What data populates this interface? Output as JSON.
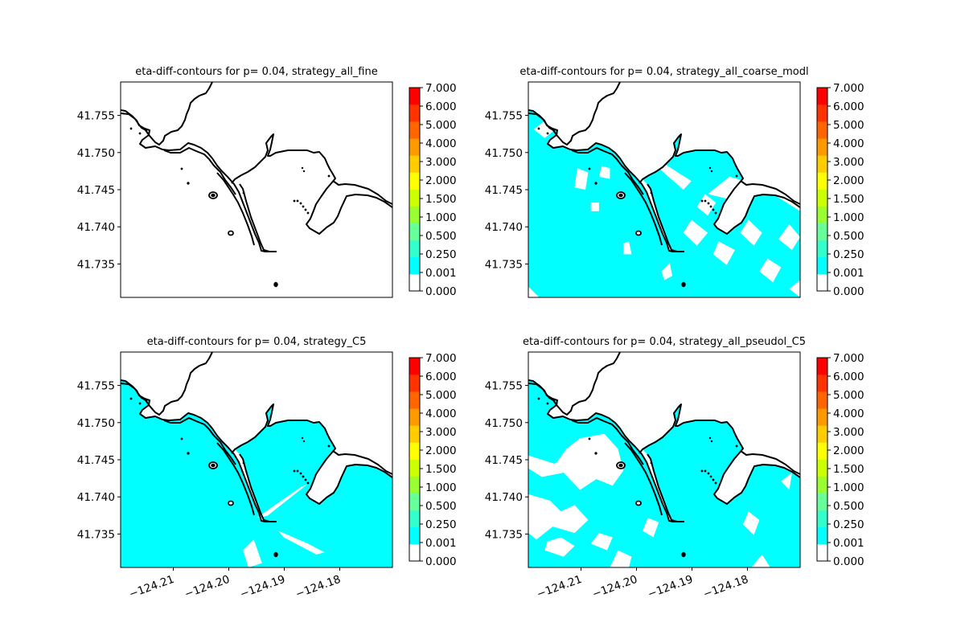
{
  "figure": {
    "background": "#ffffff"
  },
  "chart_data": [
    {
      "type": "heatmap",
      "title": "eta-diff-contours for p= 0.04, strategy_all_fine",
      "xlim": [
        -124.2195,
        -124.1705
      ],
      "ylim": [
        41.7305,
        41.7595
      ],
      "yticks": [
        "41.755",
        "41.750",
        "41.745",
        "41.740",
        "41.735"
      ],
      "ytick_values": [
        41.755,
        41.75,
        41.745,
        41.74,
        41.735
      ],
      "xticks": [],
      "fill": "none",
      "white_regions": [],
      "coastline_color": "#000000",
      "colorbar": {
        "levels": [
          "0.000",
          "0.001",
          "0.250",
          "0.500",
          "1.000",
          "1.500",
          "2.000",
          "3.000",
          "4.000",
          "5.000",
          "6.000",
          "7.000"
        ],
        "colors": [
          "#ffffff",
          "#00ffff",
          "#33ffcc",
          "#66ff99",
          "#99ff33",
          "#ccff00",
          "#ffff00",
          "#ffcc00",
          "#ff9900",
          "#ff6600",
          "#ff3300",
          "#ff0000"
        ]
      }
    },
    {
      "type": "heatmap",
      "title": "eta-diff-contours for p= 0.04, strategy_all_coarse_modl",
      "xlim": [
        -124.2195,
        -124.1705
      ],
      "ylim": [
        41.7305,
        41.7595
      ],
      "yticks": [
        "41.755",
        "41.750",
        "41.745",
        "41.740",
        "41.735"
      ],
      "ytick_values": [
        41.755,
        41.75,
        41.745,
        41.74,
        41.735
      ],
      "xticks": [],
      "fill": "#00ffff",
      "white_regions": [
        [
          [
            0.02,
            0.78
          ],
          [
            0.06,
            0.74
          ],
          [
            0.1,
            0.78
          ],
          [
            0.06,
            0.82
          ]
        ],
        [
          [
            0.17,
            0.51
          ],
          [
            0.21,
            0.5
          ],
          [
            0.22,
            0.58
          ],
          [
            0.18,
            0.6
          ]
        ],
        [
          [
            0.26,
            0.56
          ],
          [
            0.3,
            0.55
          ],
          [
            0.3,
            0.6
          ],
          [
            0.27,
            0.61
          ]
        ],
        [
          [
            0.23,
            0.4
          ],
          [
            0.26,
            0.4
          ],
          [
            0.26,
            0.44
          ],
          [
            0.23,
            0.44
          ]
        ],
        [
          [
            0.0,
            0.05
          ],
          [
            0.04,
            0.0
          ],
          [
            0.0,
            0.0
          ]
        ],
        [
          [
            0.35,
            0.2
          ],
          [
            0.38,
            0.2
          ],
          [
            0.37,
            0.26
          ],
          [
            0.35,
            0.25
          ]
        ],
        [
          [
            0.5,
            0.08
          ],
          [
            0.53,
            0.1
          ],
          [
            0.52,
            0.16
          ],
          [
            0.49,
            0.12
          ]
        ],
        [
          [
            0.48,
            0.6
          ],
          [
            0.57,
            0.5
          ],
          [
            0.6,
            0.54
          ],
          [
            0.5,
            0.62
          ]
        ],
        [
          [
            0.66,
            0.48
          ],
          [
            0.79,
            0.44
          ],
          [
            0.85,
            0.52
          ],
          [
            0.74,
            0.56
          ]
        ],
        [
          [
            0.79,
            0.6
          ],
          [
            0.84,
            0.56
          ],
          [
            0.87,
            0.64
          ],
          [
            0.82,
            0.68
          ]
        ],
        [
          [
            0.87,
            0.64
          ],
          [
            0.93,
            0.6
          ],
          [
            0.95,
            0.66
          ],
          [
            0.9,
            0.7
          ]
        ],
        [
          [
            0.9,
            0.48
          ],
          [
            1.0,
            0.4
          ],
          [
            1.0,
            0.52
          ],
          [
            0.93,
            0.55
          ]
        ],
        [
          [
            0.57,
            0.3
          ],
          [
            0.62,
            0.24
          ],
          [
            0.66,
            0.3
          ],
          [
            0.6,
            0.36
          ]
        ],
        [
          [
            0.68,
            0.2
          ],
          [
            0.73,
            0.15
          ],
          [
            0.76,
            0.22
          ],
          [
            0.7,
            0.26
          ]
        ],
        [
          [
            0.78,
            0.3
          ],
          [
            0.83,
            0.24
          ],
          [
            0.86,
            0.3
          ],
          [
            0.81,
            0.36
          ]
        ],
        [
          [
            0.85,
            0.12
          ],
          [
            0.9,
            0.07
          ],
          [
            0.93,
            0.14
          ],
          [
            0.88,
            0.18
          ]
        ],
        [
          [
            0.92,
            0.27
          ],
          [
            0.97,
            0.22
          ],
          [
            1.0,
            0.28
          ],
          [
            0.96,
            0.34
          ]
        ],
        [
          [
            0.72,
            0.38
          ],
          [
            0.77,
            0.33
          ],
          [
            0.8,
            0.4
          ],
          [
            0.75,
            0.44
          ]
        ],
        [
          [
            0.62,
            0.42
          ],
          [
            0.66,
            0.38
          ],
          [
            0.69,
            0.44
          ],
          [
            0.65,
            0.48
          ]
        ],
        [
          [
            0.96,
            0.04
          ],
          [
            1.0,
            0.0
          ],
          [
            1.0,
            0.08
          ]
        ]
      ],
      "coastline_color": "#000000",
      "colorbar": {
        "levels": [
          "0.000",
          "0.001",
          "0.250",
          "0.500",
          "1.000",
          "1.500",
          "2.000",
          "3.000",
          "4.000",
          "5.000",
          "6.000",
          "7.000"
        ],
        "colors": [
          "#ffffff",
          "#00ffff",
          "#33ffcc",
          "#66ff99",
          "#99ff33",
          "#ccff00",
          "#ffff00",
          "#ffcc00",
          "#ff9900",
          "#ff6600",
          "#ff3300",
          "#ff0000"
        ]
      }
    },
    {
      "type": "heatmap",
      "title": "eta-diff-contours for p= 0.04, strategy_C5",
      "xlim": [
        -124.2195,
        -124.1705
      ],
      "ylim": [
        41.7305,
        41.7595
      ],
      "yticks": [
        "41.755",
        "41.750",
        "41.745",
        "41.740",
        "41.735"
      ],
      "ytick_values": [
        41.755,
        41.75,
        41.745,
        41.74,
        41.735
      ],
      "xticks": [
        "−124.21",
        "−124.20",
        "−124.19",
        "−124.18"
      ],
      "xtick_values": [
        -124.21,
        -124.2,
        -124.19,
        -124.18
      ],
      "fill": "#00ffff",
      "white_regions": [
        [
          [
            0.5,
            0.23
          ],
          [
            0.66,
            0.37
          ],
          [
            0.69,
            0.39
          ],
          [
            0.54,
            0.24
          ]
        ],
        [
          [
            0.58,
            0.17
          ],
          [
            0.69,
            0.11
          ],
          [
            0.75,
            0.07
          ],
          [
            0.72,
            0.06
          ],
          [
            0.6,
            0.14
          ]
        ],
        [
          [
            0.49,
            0.13
          ],
          [
            0.52,
            0.02
          ],
          [
            0.47,
            0.0
          ],
          [
            0.45,
            0.08
          ]
        ]
      ],
      "coastline_color": "#000000",
      "colorbar": {
        "levels": [
          "0.000",
          "0.001",
          "0.250",
          "0.500",
          "1.000",
          "1.500",
          "2.000",
          "3.000",
          "4.000",
          "5.000",
          "6.000",
          "7.000"
        ],
        "colors": [
          "#ffffff",
          "#00ffff",
          "#33ffcc",
          "#66ff99",
          "#99ff33",
          "#ccff00",
          "#ffff00",
          "#ffcc00",
          "#ff9900",
          "#ff6600",
          "#ff3300",
          "#ff0000"
        ]
      }
    },
    {
      "type": "heatmap",
      "title": "eta-diff-contours for p= 0.04, strategy_all_pseudol_C5",
      "xlim": [
        -124.2195,
        -124.1705
      ],
      "ylim": [
        41.7305,
        41.7595
      ],
      "yticks": [
        "41.755",
        "41.750",
        "41.745",
        "41.740",
        "41.735"
      ],
      "ytick_values": [
        41.755,
        41.75,
        41.745,
        41.74,
        41.735
      ],
      "xticks": [
        "−124.21",
        "−124.20",
        "−124.19",
        "−124.18"
      ],
      "xtick_values": [
        -124.21,
        -124.2,
        -124.19,
        -124.18
      ],
      "fill": "#00ffff",
      "white_regions": [
        [
          [
            0.0,
            0.52
          ],
          [
            0.1,
            0.48
          ],
          [
            0.14,
            0.55
          ],
          [
            0.19,
            0.6
          ],
          [
            0.28,
            0.62
          ],
          [
            0.33,
            0.55
          ],
          [
            0.35,
            0.45
          ],
          [
            0.31,
            0.38
          ],
          [
            0.25,
            0.41
          ],
          [
            0.19,
            0.36
          ],
          [
            0.13,
            0.44
          ],
          [
            0.05,
            0.42
          ],
          [
            0.0,
            0.46
          ]
        ],
        [
          [
            0.0,
            0.34
          ],
          [
            0.08,
            0.31
          ],
          [
            0.12,
            0.26
          ],
          [
            0.17,
            0.29
          ],
          [
            0.22,
            0.22
          ],
          [
            0.17,
            0.16
          ],
          [
            0.09,
            0.19
          ],
          [
            0.03,
            0.13
          ],
          [
            0.0,
            0.16
          ]
        ],
        [
          [
            0.06,
            0.08
          ],
          [
            0.13,
            0.05
          ],
          [
            0.17,
            0.1
          ],
          [
            0.12,
            0.14
          ],
          [
            0.07,
            0.12
          ]
        ],
        [
          [
            0.23,
            0.11
          ],
          [
            0.29,
            0.08
          ],
          [
            0.31,
            0.14
          ],
          [
            0.26,
            0.16
          ]
        ],
        [
          [
            0.08,
            0.47
          ],
          [
            0.13,
            0.45
          ],
          [
            0.12,
            0.5
          ]
        ],
        [
          [
            0.3,
            0.0
          ],
          [
            0.33,
            0.08
          ],
          [
            0.38,
            0.05
          ],
          [
            0.37,
            0.0
          ]
        ],
        [
          [
            0.42,
            0.17
          ],
          [
            0.46,
            0.14
          ],
          [
            0.48,
            0.21
          ],
          [
            0.44,
            0.23
          ]
        ],
        [
          [
            0.79,
            0.2
          ],
          [
            0.83,
            0.15
          ],
          [
            0.85,
            0.22
          ],
          [
            0.81,
            0.26
          ]
        ],
        [
          [
            0.82,
            0.0
          ],
          [
            0.86,
            0.06
          ],
          [
            0.89,
            0.0
          ]
        ],
        [
          [
            0.93,
            0.4
          ],
          [
            0.96,
            0.36
          ],
          [
            0.97,
            0.44
          ]
        ],
        [
          [
            0.0,
            0.95
          ],
          [
            0.04,
            0.9
          ],
          [
            0.08,
            0.97
          ],
          [
            0.1,
            1.0
          ],
          [
            0.0,
            1.0
          ]
        ]
      ],
      "coastline_color": "#000000",
      "colorbar": {
        "levels": [
          "0.000",
          "0.001",
          "0.250",
          "0.500",
          "1.000",
          "1.500",
          "2.000",
          "3.000",
          "4.000",
          "5.000",
          "6.000",
          "7.000"
        ],
        "colors": [
          "#ffffff",
          "#00ffff",
          "#33ffcc",
          "#66ff99",
          "#99ff33",
          "#ccff00",
          "#ffff00",
          "#ffcc00",
          "#ff9900",
          "#ff6600",
          "#ff3300",
          "#ff0000"
        ]
      }
    }
  ]
}
